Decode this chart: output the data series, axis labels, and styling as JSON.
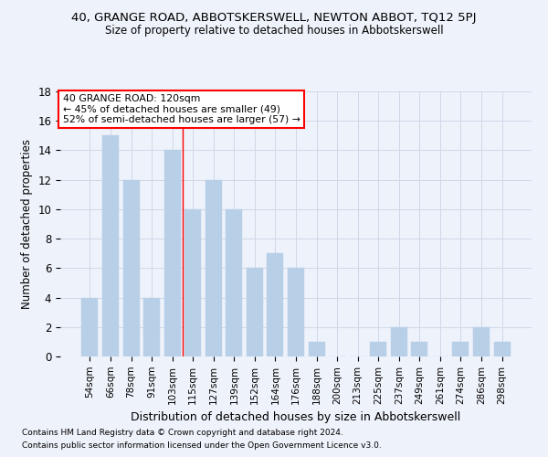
{
  "title": "40, GRANGE ROAD, ABBOTSKERSWELL, NEWTON ABBOT, TQ12 5PJ",
  "subtitle": "Size of property relative to detached houses in Abbotskerswell",
  "xlabel": "Distribution of detached houses by size in Abbotskerswell",
  "ylabel": "Number of detached properties",
  "categories": [
    "54sqm",
    "66sqm",
    "78sqm",
    "91sqm",
    "103sqm",
    "115sqm",
    "127sqm",
    "139sqm",
    "152sqm",
    "164sqm",
    "176sqm",
    "188sqm",
    "200sqm",
    "213sqm",
    "225sqm",
    "237sqm",
    "249sqm",
    "261sqm",
    "274sqm",
    "286sqm",
    "298sqm"
  ],
  "values": [
    4,
    15,
    12,
    4,
    14,
    10,
    12,
    10,
    6,
    7,
    6,
    1,
    0,
    0,
    1,
    2,
    1,
    0,
    1,
    2,
    1
  ],
  "bar_color": "#b8cfe8",
  "bar_edgecolor": "#b8cfe8",
  "ylim": [
    0,
    18
  ],
  "yticks": [
    0,
    2,
    4,
    6,
    8,
    10,
    12,
    14,
    16,
    18
  ],
  "annotation_title": "40 GRANGE ROAD: 120sqm",
  "annotation_line1": "← 45% of detached houses are smaller (49)",
  "annotation_line2": "52% of semi-detached houses are larger (57) →",
  "footnote1": "Contains HM Land Registry data © Crown copyright and database right 2024.",
  "footnote2": "Contains public sector information licensed under the Open Government Licence v3.0.",
  "grid_color": "#d0d8e8",
  "background_color": "#eef2fa",
  "plot_bg_color": "#eef2fa",
  "red_line_x": 4.5
}
